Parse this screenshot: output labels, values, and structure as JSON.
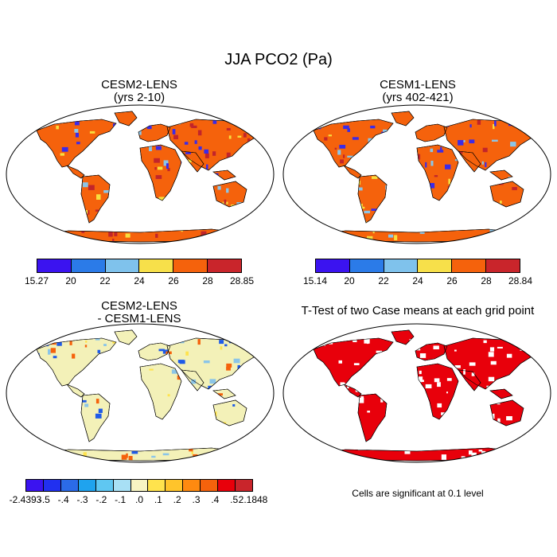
{
  "figure": {
    "title": "JJA PCO2 (Pa)"
  },
  "panels": [
    {
      "title_line1": "CESM2-LENS",
      "title_line2": "(yrs 2-10)",
      "land_color": "#F5620C",
      "accent_colors": [
        "#C2252A",
        "#3B2BE8",
        "#8BC5E8",
        "#F8DE3E"
      ]
    },
    {
      "title_line1": "CESM1-LENS",
      "title_line2": "(yrs 402-421)",
      "land_color": "#F5620C",
      "accent_colors": [
        "#C2252A",
        "#3B2BE8",
        "#8BC5E8",
        "#F8DE3E"
      ]
    },
    {
      "title_line1": "CESM2-LENS",
      "title_line2": "- CESM1-LENS",
      "land_color": "#F3F1B8",
      "accent_colors": [
        "#8BC5E8",
        "#FFE34D",
        "#F5620C",
        "#1F5BE8"
      ]
    },
    {
      "title_line1": "T-Test of two Case means at each grid point",
      "title_line2": "",
      "land_color": "#E8000B",
      "accent_colors": [
        "#FFFFFF"
      ]
    }
  ],
  "colorbars": [
    {
      "colors": [
        "#3B13F0",
        "#2B7BE8",
        "#7FC2EC",
        "#F7E04A",
        "#F5620C",
        "#C9252B"
      ],
      "labels": [
        "15.27",
        "20",
        "22",
        "24",
        "26",
        "28",
        "28.85"
      ]
    },
    {
      "colors": [
        "#3B13F0",
        "#2B7BE8",
        "#7FC2EC",
        "#F7E04A",
        "#F5620C",
        "#C9252B"
      ],
      "labels": [
        "15.14",
        "20",
        "22",
        "24",
        "26",
        "28",
        "28.84"
      ]
    },
    {
      "colors": [
        "#3B13F0",
        "#2130F0",
        "#2B6BE8",
        "#1FA3EE",
        "#5FC7F2",
        "#A8E0F5",
        "#F7F4C3",
        "#FFE34D",
        "#FFC42B",
        "#FF8A10",
        "#F5620C",
        "#E8000B",
        "#C9252B"
      ],
      "labels": [
        "-2.4393",
        "-.5",
        "-.4",
        "-.3",
        "-.2",
        "-.1",
        ".0",
        ".1",
        ".2",
        ".3",
        ".4",
        ".5",
        "2.1848"
      ]
    }
  ],
  "note": "Cells are significant at 0.1 level"
}
